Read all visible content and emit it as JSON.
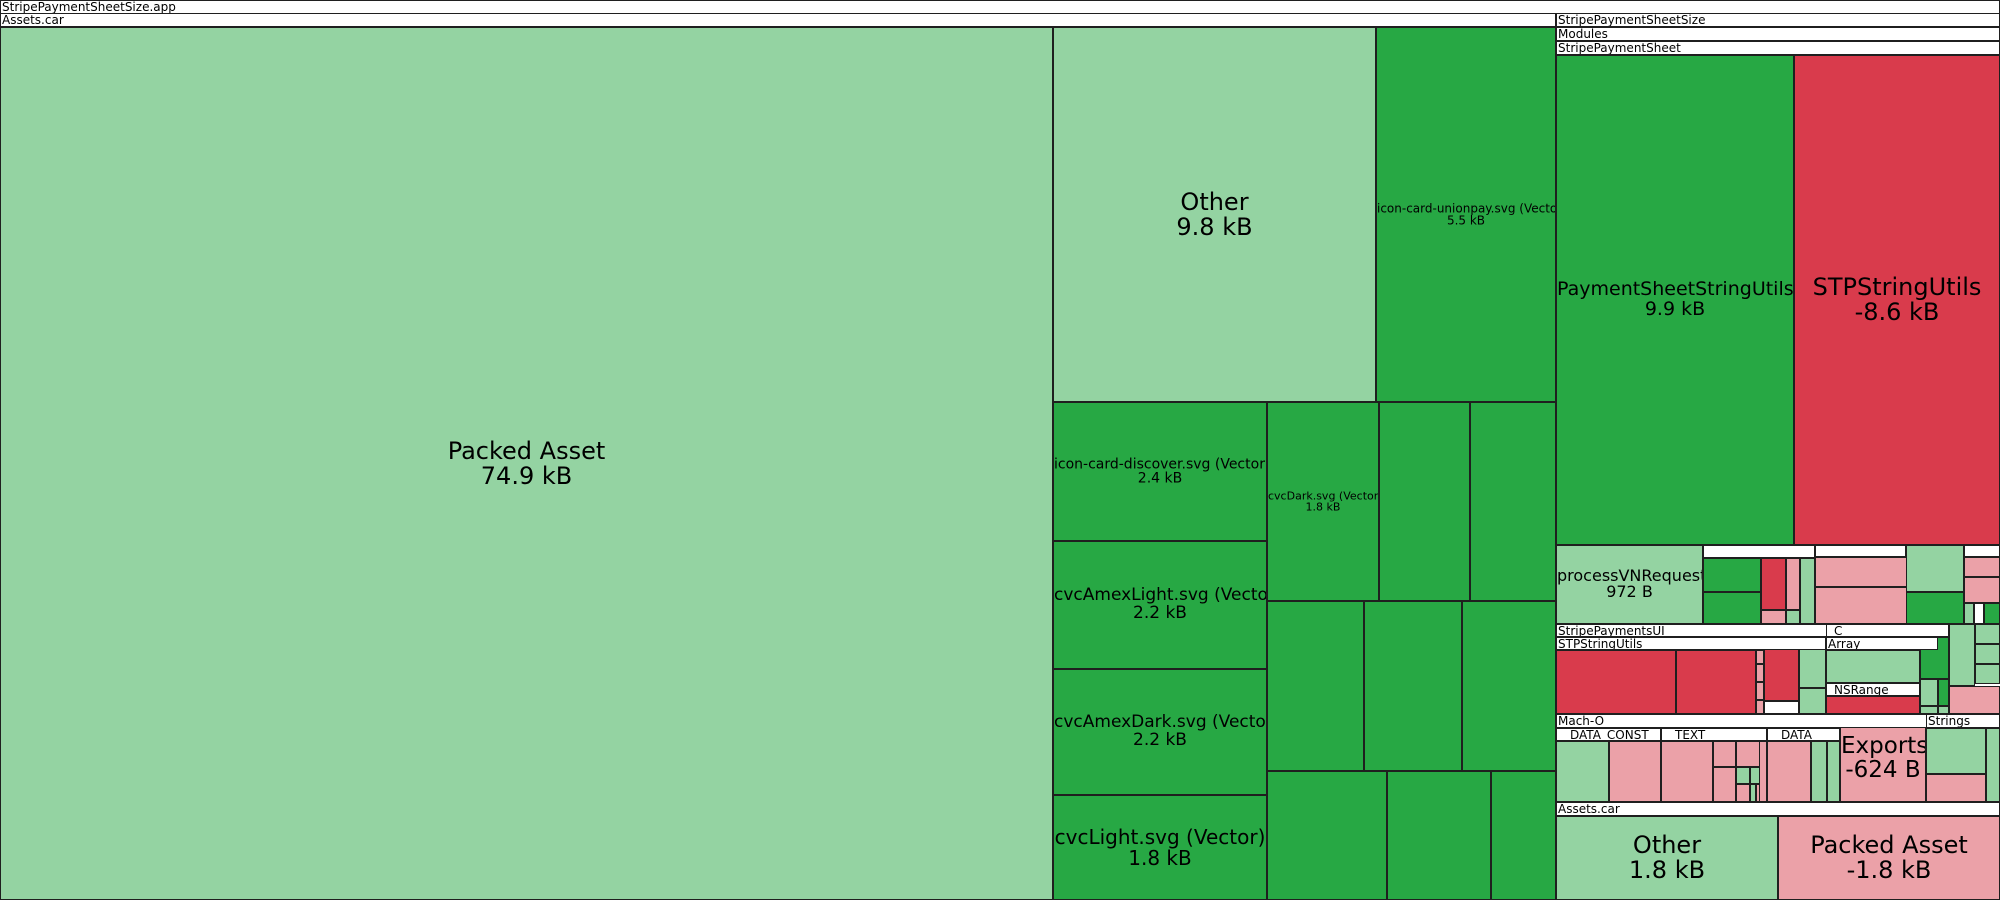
{
  "chart_data": {
    "type": "treemap",
    "title": "StripePaymentSheetSize.app",
    "colors": {
      "strong_green": "#27a844",
      "light_green": "#94d3a2",
      "strong_red": "#d93b4c",
      "light_red": "#eba1a8",
      "header": "#ffffff"
    },
    "groups": [
      {
        "key": "g-app",
        "label": "StripePaymentSheetSize.app"
      },
      {
        "key": "g-assets-main",
        "label": "Assets.car"
      },
      {
        "key": "g-stripe-size",
        "label": "StripePaymentSheetSize"
      },
      {
        "key": "g-modules",
        "label": "Modules"
      },
      {
        "key": "g-stripe-sheet",
        "label": "StripePaymentSheet"
      },
      {
        "key": "g-stripepaymentsui",
        "label": "StripePaymentsUI"
      },
      {
        "key": "g-stpstringutils",
        "label": "STPStringUtils"
      },
      {
        "key": "g-c",
        "label": "_C"
      },
      {
        "key": "g-array",
        "label": "Array"
      },
      {
        "key": "g-nsrange",
        "label": "_NSRange"
      },
      {
        "key": "g-macho",
        "label": "Mach-O"
      },
      {
        "key": "g-data-const",
        "label": "__DATA_CONST"
      },
      {
        "key": "g-text",
        "label": "__TEXT"
      },
      {
        "key": "g-data",
        "label": "__DATA"
      },
      {
        "key": "g-strings",
        "label": "Strings"
      },
      {
        "key": "g-assets-right",
        "label": "Assets.car"
      }
    ],
    "items": [
      {
        "key": "packed-asset",
        "label": "Packed Asset",
        "value": "74.9 kB",
        "color": "light_green"
      },
      {
        "key": "other-main",
        "label": "Other",
        "value": "9.8 kB",
        "color": "light_green"
      },
      {
        "key": "unionpay",
        "label": "icon-card-unionpay.svg (Vector)",
        "value": "5.5 kB",
        "color": "strong_green"
      },
      {
        "key": "discover",
        "label": "icon-card-discover.svg (Vector)",
        "value": "2.4 kB",
        "color": "strong_green"
      },
      {
        "key": "cvcdark",
        "label": "cvcDark.svg (Vector)",
        "value": "1.8 kB",
        "color": "strong_green"
      },
      {
        "key": "amexlight",
        "label": "cvcAmexLight.svg (Vector)",
        "value": "2.2 kB",
        "color": "strong_green"
      },
      {
        "key": "amexdark",
        "label": "cvcAmexDark.svg (Vector)",
        "value": "2.2 kB",
        "color": "strong_green"
      },
      {
        "key": "cvclight",
        "label": "cvcLight.svg (Vector)",
        "value": "1.8 kB",
        "color": "strong_green"
      },
      {
        "key": "psstringutils",
        "label": "PaymentSheetStringUtils",
        "value": "9.9 kB",
        "color": "strong_green"
      },
      {
        "key": "stpstringutils",
        "label": "STPStringUtils",
        "value": "-8.6 kB",
        "color": "strong_red"
      },
      {
        "key": "processvn",
        "label": "processVNRequest",
        "value": "972 B",
        "color": "light_green"
      },
      {
        "key": "exports",
        "label": "Exports",
        "value": "-624 B",
        "color": "light_red"
      },
      {
        "key": "other-right",
        "label": "Other",
        "value": "1.8 kB",
        "color": "light_green"
      },
      {
        "key": "packed-asset-right",
        "label": "Packed Asset",
        "value": "-1.8 kB",
        "color": "light_red"
      }
    ]
  }
}
